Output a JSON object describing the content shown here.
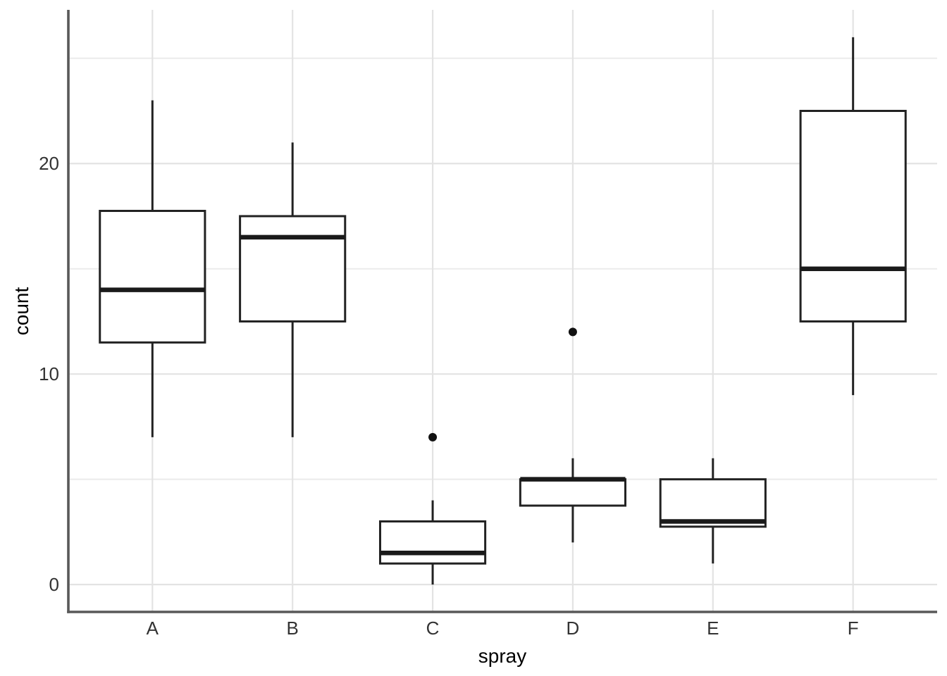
{
  "chart_data": {
    "type": "boxplot",
    "title": "",
    "xlabel": "spray",
    "ylabel": "count",
    "categories": [
      "A",
      "B",
      "C",
      "D",
      "E",
      "F"
    ],
    "series": [
      {
        "category": "A",
        "whisker_low": 7,
        "q1": 11.5,
        "median": 14,
        "q3": 17.75,
        "whisker_high": 23,
        "outliers": []
      },
      {
        "category": "B",
        "whisker_low": 7,
        "q1": 12.5,
        "median": 16.5,
        "q3": 17.5,
        "whisker_high": 21,
        "outliers": []
      },
      {
        "category": "C",
        "whisker_low": 0,
        "q1": 1,
        "median": 1.5,
        "q3": 3,
        "whisker_high": 4,
        "outliers": [
          7
        ]
      },
      {
        "category": "D",
        "whisker_low": 2,
        "q1": 3.75,
        "median": 5,
        "q3": 5,
        "whisker_high": 6,
        "outliers": [
          12
        ]
      },
      {
        "category": "E",
        "whisker_low": 1,
        "q1": 2.75,
        "median": 3,
        "q3": 5,
        "whisker_high": 6,
        "outliers": []
      },
      {
        "category": "F",
        "whisker_low": 9,
        "q1": 12.5,
        "median": 15,
        "q3": 22.5,
        "whisker_high": 26,
        "outliers": []
      }
    ],
    "y_axis": {
      "ticks": [
        0,
        10,
        20
      ],
      "minor_ticks": [
        5,
        15,
        25
      ],
      "domain": [
        -1.3,
        27.3
      ]
    },
    "x_axis": {
      "grid_at_categories": true
    },
    "layout_hints": {
      "grid": "major-and-minor-horizontal, major-vertical",
      "legend": "none",
      "box_fill": "white"
    },
    "colors": {
      "background": "#ffffff",
      "grid_major": "#e3e3e3",
      "grid_minor": "#ebebeb",
      "axis_line": "#595959",
      "box_stroke": "#222222",
      "median_stroke": "#1a1a1a",
      "whisker_stroke": "#222222",
      "outlier_fill": "#111111",
      "tick_label": "#333333",
      "axis_title": "#000000"
    }
  }
}
